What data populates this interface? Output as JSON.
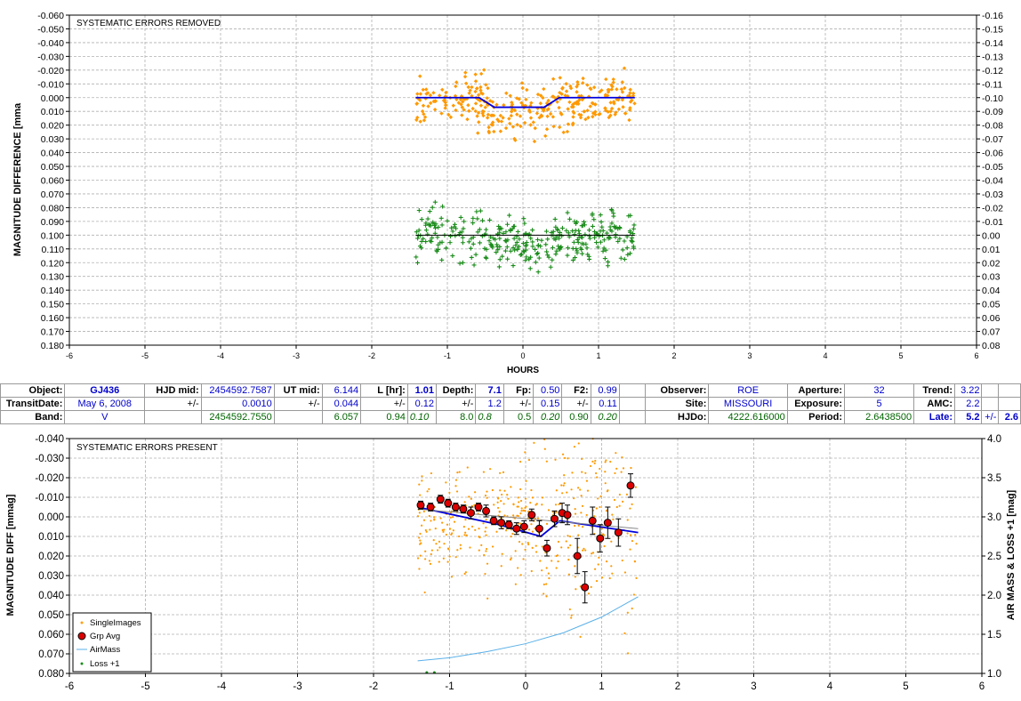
{
  "chart_data": [
    {
      "type": "scatter",
      "title": "SYSTEMATIC ERRORS REMOVED",
      "xlabel": "HOURS",
      "ylabel": "MAGNITUDE DIFFERENCE [mma",
      "xlim": [
        -6,
        6
      ],
      "ylim_left": [
        -0.06,
        0.18
      ],
      "ylim_right": [
        -0.16,
        0.08
      ],
      "y_inverted": true,
      "grid": true,
      "x_ticks": [
        "-6",
        "-5",
        "-4",
        "-3",
        "-2",
        "-1",
        "0",
        "1",
        "2",
        "3",
        "4",
        "5",
        "6"
      ],
      "y_ticks_left": [
        "-0.060",
        "-0.050",
        "-0.040",
        "-0.030",
        "-0.020",
        "-0.010",
        "0.000",
        "0.010",
        "0.020",
        "0.030",
        "0.040",
        "0.050",
        "0.060",
        "0.070",
        "0.080",
        "0.090",
        "0.100",
        "0.110",
        "0.120",
        "0.130",
        "0.140",
        "0.150",
        "0.160",
        "0.170",
        "0.180"
      ],
      "y_ticks_right": [
        "-0.16",
        "-0.15",
        "-0.14",
        "-0.13",
        "-0.12",
        "-0.11",
        "-0.10",
        "-0.09",
        "-0.08",
        "-0.07",
        "-0.06",
        "-0.05",
        "-0.04",
        "-0.03",
        "-0.02",
        "-0.01",
        "0.00",
        "0.01",
        "0.02",
        "0.03",
        "0.04",
        "0.05",
        "0.06",
        "0.07",
        "0.08"
      ],
      "series": [
        {
          "color": "#ff9900",
          "marker": "diamond",
          "x_range": [
            -1.42,
            1.48
          ],
          "y_center": 0.003,
          "y_spread": 0.009,
          "n": 330
        },
        {
          "color": "#1a8c1a",
          "marker": "plus",
          "x_range": [
            -1.42,
            1.48
          ],
          "y_center": 0.1,
          "y_spread": 0.009,
          "n": 330
        },
        {
          "color": "#0000dd",
          "type": "line",
          "x": [
            -1.42,
            -0.58,
            -0.38,
            0.28,
            0.48,
            1.48
          ],
          "y": [
            0.0,
            0.0,
            0.007,
            0.007,
            0.0,
            0.0
          ]
        },
        {
          "color": "#000000",
          "type": "line",
          "x": [
            -1.42,
            1.48
          ],
          "y": [
            0.1,
            0.1
          ]
        }
      ]
    },
    {
      "type": "scatter",
      "title": "SYSTEMATIC ERRORS PRESENT",
      "xlabel": "",
      "ylabel": "MAGNITUDE DIFF [mmag]",
      "ylabel_right": "AIR MASS & LOSS +1 [mag]",
      "xlim": [
        -6,
        6
      ],
      "ylim_left": [
        -0.04,
        0.08
      ],
      "ylim_right": [
        1.0,
        4.0
      ],
      "y_inverted": true,
      "grid": true,
      "legend": "bottom-left",
      "x_ticks": [
        "-6",
        "-5",
        "-4",
        "-3",
        "-2",
        "-1",
        "0",
        "1",
        "2",
        "3",
        "4",
        "5",
        "6"
      ],
      "y_ticks_left": [
        "-0.040",
        "-0.030",
        "-0.020",
        "-0.010",
        "0.000",
        "0.010",
        "0.020",
        "0.030",
        "0.040",
        "0.050",
        "0.060",
        "0.070",
        "0.080"
      ],
      "y_ticks_right": [
        "4.0",
        "3.5",
        "3.0",
        "2.5",
        "2.0",
        "1.5",
        "1.0"
      ],
      "series": [
        {
          "name": "SingleImages",
          "color": "#ff9900",
          "marker": "dot",
          "x_range": [
            -1.42,
            1.48
          ],
          "y_center": 0.004,
          "y_spread": 0.014,
          "n": 420
        },
        {
          "name": "Grp Avg",
          "color": "#dd0000",
          "marker": "circle",
          "x": [
            -1.38,
            -1.25,
            -1.12,
            -1.02,
            -0.92,
            -0.82,
            -0.72,
            -0.62,
            -0.52,
            -0.42,
            -0.32,
            -0.22,
            -0.12,
            -0.02,
            0.08,
            0.18,
            0.28,
            0.38,
            0.48,
            0.55,
            0.68,
            0.78,
            0.88,
            0.98,
            1.08,
            1.22,
            1.38
          ],
          "y": [
            -0.006,
            -0.005,
            -0.009,
            -0.007,
            -0.005,
            -0.004,
            -0.002,
            -0.005,
            -0.003,
            0.002,
            0.003,
            0.004,
            0.006,
            0.005,
            -0.001,
            0.006,
            0.016,
            0.001,
            -0.002,
            -0.001,
            0.02,
            0.036,
            0.002,
            0.011,
            0.003,
            0.008,
            -0.016
          ],
          "err": [
            0.002,
            0.002,
            0.002,
            0.002,
            0.002,
            0.002,
            0.003,
            0.002,
            0.003,
            0.002,
            0.003,
            0.002,
            0.003,
            0.003,
            0.003,
            0.004,
            0.004,
            0.004,
            0.005,
            0.005,
            0.009,
            0.008,
            0.007,
            0.007,
            0.008,
            0.007,
            0.006
          ]
        },
        {
          "name": "AirMass",
          "color": "#5ab0e8",
          "type": "line",
          "x": [
            -1.42,
            -1.0,
            -0.5,
            0.0,
            0.5,
            1.0,
            1.48
          ],
          "y": [
            1.16,
            1.2,
            1.28,
            1.38,
            1.52,
            1.72,
            1.98
          ]
        },
        {
          "name": "Loss +1",
          "color": "#1a8c1a",
          "marker": "dot",
          "x": [
            -1.3,
            -1.2
          ],
          "y": [
            1.0,
            1.0
          ]
        },
        {
          "color": "#0000dd",
          "type": "line",
          "x": [
            -1.42,
            -0.35,
            0.2,
            0.45,
            1.48
          ],
          "y": [
            -0.005,
            0.004,
            0.01,
            0.002,
            0.008
          ]
        },
        {
          "color": "#888888",
          "type": "line",
          "x": [
            -1.42,
            1.48
          ],
          "y": [
            -0.004,
            0.006
          ]
        }
      ]
    }
  ],
  "info": {
    "object_label": "Object:",
    "object": "GJ436",
    "hjd_mid_label": "HJD mid:",
    "hjd_mid": "2454592.7587",
    "ut_mid_label": "UT mid:",
    "ut_mid": "6.144",
    "l_label": "L [hr]:",
    "l": "1.01",
    "depth_label": "Depth:",
    "depth": "7.1",
    "fp_label": "Fp:",
    "fp": "0.50",
    "f2_label": "F2:",
    "f2": "0.99",
    "observer_label": "Observer:",
    "observer": "ROE",
    "aperture_label": "Aperture:",
    "aperture": "32",
    "trend_label": "Trend:",
    "trend": "3.22",
    "transit_label": "TransitDate:",
    "transit": "May 6, 2008",
    "pm": "+/-",
    "hjd_err": "0.0010",
    "ut_err": "0.044",
    "l_err": "0.12",
    "depth_err": "1.2",
    "fp_err": "0.15",
    "f2_err": "0.11",
    "site_label": "Site:",
    "site": "MISSOURI",
    "exposure_label": "Exposure:",
    "exposure": "5",
    "amc_label": "AMC:",
    "amc": "2.2",
    "band_label": "Band:",
    "band": "V",
    "hjd2": "2454592.7550",
    "ut2": "6.057",
    "l2": "0.94",
    "l2i": "0.10",
    "d2": "8.0",
    "d2i": "0.8",
    "fp2": "0.5",
    "fp2i": "0.20",
    "f22": "0.90",
    "f22i": "0.20",
    "hjdo_label": "HJDo:",
    "hjdo": "4222.616000",
    "period_label": "Period:",
    "period": "2.6438500",
    "late_label": "Late:",
    "late": "5.2",
    "late_pm": "+/-",
    "late_err": "2.6"
  }
}
